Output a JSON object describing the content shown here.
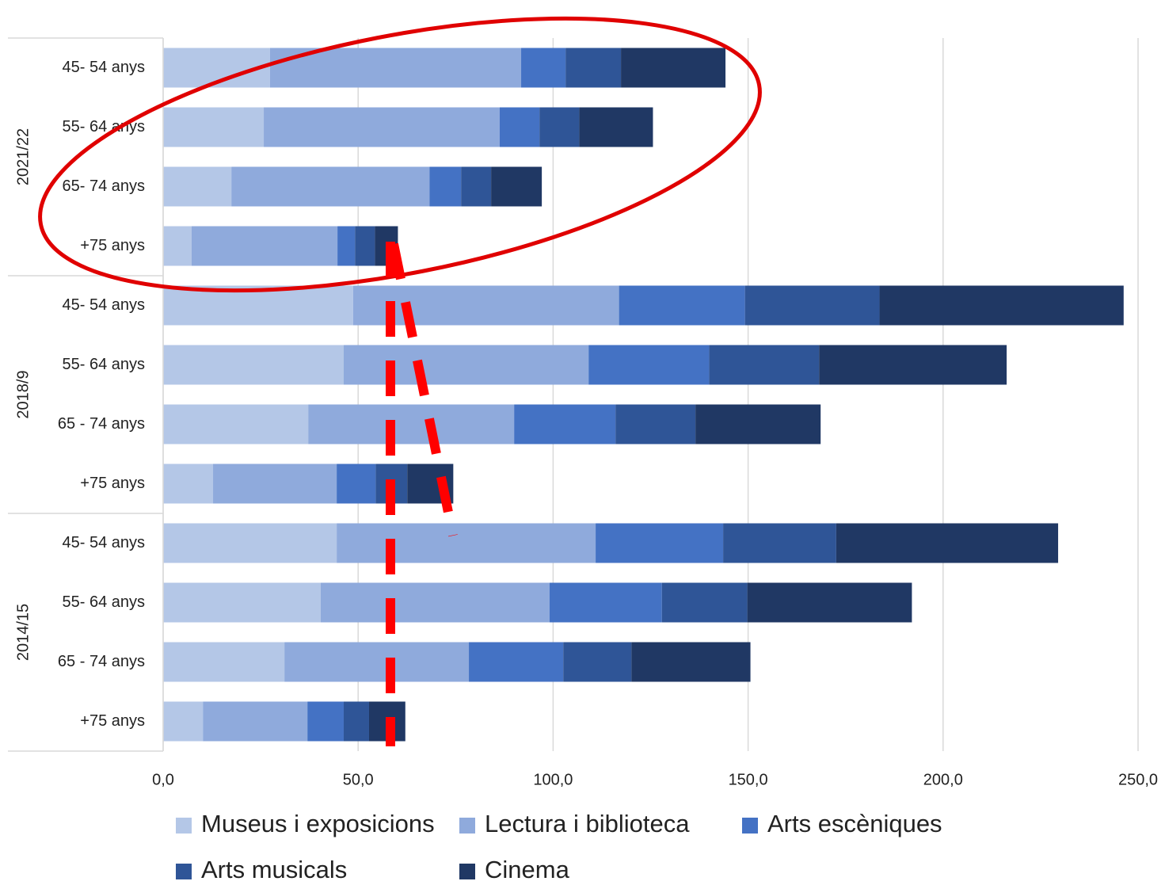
{
  "chart_data": {
    "type": "stacked-bar-horizontal",
    "groups": [
      {
        "name": "2021/22",
        "categories": [
          "45- 54 anys",
          "55- 64 anys",
          "65- 74 anys",
          "+75 anys"
        ]
      },
      {
        "name": "2018/9",
        "categories": [
          "45- 54 anys",
          "55- 64 anys",
          "65 - 74 anys",
          "+75 anys"
        ]
      },
      {
        "name": "2014/15",
        "categories": [
          "45- 54 anys",
          "55- 64 anys",
          "65 - 74 anys",
          "+75 anys"
        ]
      }
    ],
    "series": [
      {
        "name": "Museus i exposicions",
        "color": "#b4c7e7",
        "values": [
          27.4,
          25.8,
          17.5,
          7.3,
          48.7,
          46.3,
          37.2,
          12.8,
          44.5,
          40.4,
          31.1,
          10.2
        ]
      },
      {
        "name": "Lectura i biblioteca",
        "color": "#8faadc",
        "values": [
          64.4,
          60.5,
          50.8,
          37.4,
          68.2,
          62.8,
          52.8,
          31.7,
          66.4,
          58.7,
          47.3,
          26.8
        ]
      },
      {
        "name": "Arts escèniques",
        "color": "#4472c4",
        "values": [
          11.4,
          10.2,
          8.1,
          4.5,
          32.3,
          30.9,
          26.0,
          10.0,
          32.7,
          28.8,
          24.2,
          9.3
        ]
      },
      {
        "name": "Arts musicals",
        "color": "#2f5597",
        "values": [
          14.2,
          10.2,
          7.7,
          5.1,
          34.5,
          28.2,
          20.5,
          8.1,
          29.0,
          21.9,
          17.5,
          6.5
        ]
      },
      {
        "name": "Cinema",
        "color": "#203864",
        "values": [
          26.8,
          18.9,
          13.0,
          5.9,
          62.6,
          48.1,
          32.1,
          11.8,
          56.9,
          42.2,
          30.5,
          9.3
        ]
      }
    ],
    "xlim": [
      0,
      250
    ],
    "xticks": [
      {
        "value": 0,
        "label": "0,0"
      },
      {
        "value": 50,
        "label": "50,0"
      },
      {
        "value": 100,
        "label": "100,0"
      },
      {
        "value": 150,
        "label": "150,0"
      },
      {
        "value": 200,
        "label": "200,0"
      },
      {
        "value": 250,
        "label": "250,0"
      }
    ],
    "grid": true
  }
}
